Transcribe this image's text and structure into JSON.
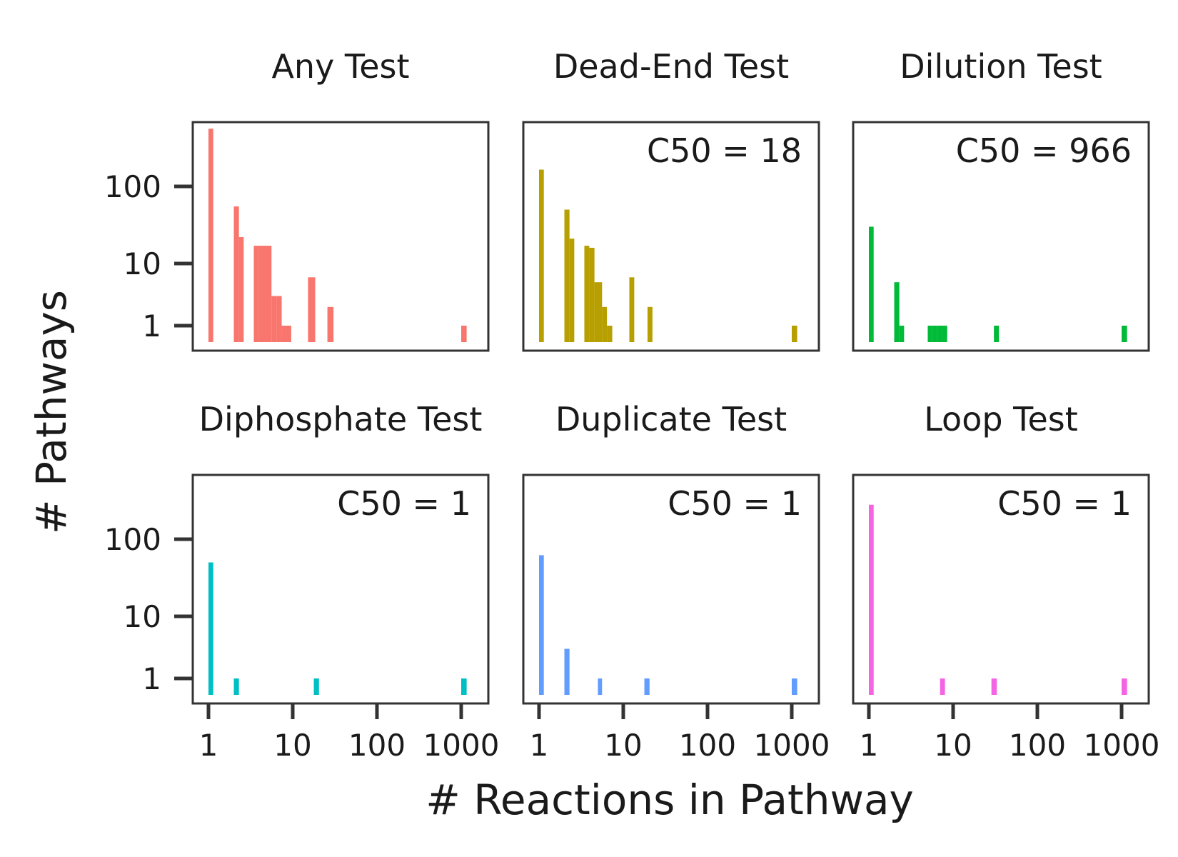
{
  "chart_data": {
    "type": "bar",
    "xlabel": "# Reactions in Pathway",
    "ylabel": "# Pathways",
    "x_scale": "log",
    "y_scale": "log",
    "x_ticks": [
      1,
      10,
      100,
      1000
    ],
    "x_tick_labels": [
      "1",
      "10",
      "100",
      "1000"
    ],
    "y_ticks": [
      1,
      10,
      100
    ],
    "y_tick_labels": [
      "1",
      "10",
      "100"
    ],
    "grid": false,
    "panels": [
      {
        "title": "Any Test",
        "c50": "",
        "color": "#f8766d",
        "bins": [
          {
            "x0": 1.0,
            "x1": 1.14,
            "count": 560
          },
          {
            "x0": 2.0,
            "x1": 2.3,
            "count": 55
          },
          {
            "x0": 2.3,
            "x1": 2.62,
            "count": 22
          },
          {
            "x0": 3.45,
            "x1": 3.95,
            "count": 17
          },
          {
            "x0": 3.95,
            "x1": 5.6,
            "count": 17
          },
          {
            "x0": 5.6,
            "x1": 6.4,
            "count": 3
          },
          {
            "x0": 6.4,
            "x1": 7.4,
            "count": 3
          },
          {
            "x0": 7.4,
            "x1": 9.6,
            "count": 1
          },
          {
            "x0": 15.2,
            "x1": 18.5,
            "count": 6
          },
          {
            "x0": 25.8,
            "x1": 30.5,
            "count": 2
          },
          {
            "x0": 1000,
            "x1": 1160,
            "count": 1
          }
        ]
      },
      {
        "title": "Dead-End Test",
        "c50": "C50 = 18",
        "color": "#b79f00",
        "bins": [
          {
            "x0": 1.0,
            "x1": 1.14,
            "count": 165
          },
          {
            "x0": 2.0,
            "x1": 2.3,
            "count": 50
          },
          {
            "x0": 2.3,
            "x1": 2.62,
            "count": 21
          },
          {
            "x0": 3.45,
            "x1": 3.95,
            "count": 17
          },
          {
            "x0": 3.95,
            "x1": 4.55,
            "count": 16
          },
          {
            "x0": 4.55,
            "x1": 5.6,
            "count": 5
          },
          {
            "x0": 5.6,
            "x1": 6.4,
            "count": 2
          },
          {
            "x0": 6.4,
            "x1": 7.4,
            "count": 1
          },
          {
            "x0": 11.8,
            "x1": 13.5,
            "count": 6
          },
          {
            "x0": 19.4,
            "x1": 22.2,
            "count": 2
          },
          {
            "x0": 1000,
            "x1": 1160,
            "count": 1
          }
        ]
      },
      {
        "title": "Dilution Test",
        "c50": "C50 = 966",
        "color": "#00ba38",
        "bins": [
          {
            "x0": 1.0,
            "x1": 1.14,
            "count": 30
          },
          {
            "x0": 2.0,
            "x1": 2.3,
            "count": 5
          },
          {
            "x0": 2.3,
            "x1": 2.62,
            "count": 1
          },
          {
            "x0": 5.0,
            "x1": 5.6,
            "count": 1
          },
          {
            "x0": 5.6,
            "x1": 6.4,
            "count": 1
          },
          {
            "x0": 6.4,
            "x1": 7.4,
            "count": 1
          },
          {
            "x0": 7.4,
            "x1": 8.5,
            "count": 1
          },
          {
            "x0": 30.5,
            "x1": 35.0,
            "count": 1
          },
          {
            "x0": 1000,
            "x1": 1160,
            "count": 1
          }
        ]
      },
      {
        "title": "Diphosphate Test",
        "c50": "C50 = 1",
        "color": "#00bfc4",
        "bins": [
          {
            "x0": 1.0,
            "x1": 1.14,
            "count": 50
          },
          {
            "x0": 2.0,
            "x1": 2.3,
            "count": 1
          },
          {
            "x0": 17.8,
            "x1": 20.5,
            "count": 1
          },
          {
            "x0": 1000,
            "x1": 1160,
            "count": 1
          }
        ]
      },
      {
        "title": "Duplicate Test",
        "c50": "C50 = 1",
        "color": "#619cff",
        "bins": [
          {
            "x0": 1.0,
            "x1": 1.14,
            "count": 62
          },
          {
            "x0": 2.0,
            "x1": 2.3,
            "count": 3
          },
          {
            "x0": 5.0,
            "x1": 5.6,
            "count": 1
          },
          {
            "x0": 17.8,
            "x1": 20.5,
            "count": 1
          },
          {
            "x0": 1000,
            "x1": 1160,
            "count": 1
          }
        ]
      },
      {
        "title": "Loop Test",
        "c50": "C50 = 1",
        "color": "#f564e3",
        "bins": [
          {
            "x0": 1.0,
            "x1": 1.14,
            "count": 280
          },
          {
            "x0": 7.0,
            "x1": 8.0,
            "count": 1
          },
          {
            "x0": 28.5,
            "x1": 33.0,
            "count": 1
          },
          {
            "x0": 1000,
            "x1": 1160,
            "count": 1
          }
        ]
      }
    ]
  }
}
